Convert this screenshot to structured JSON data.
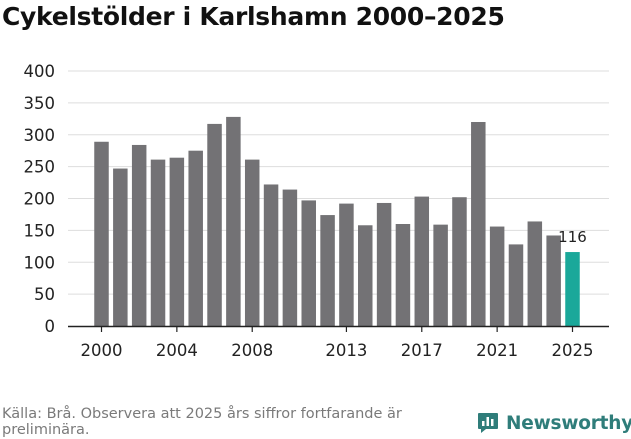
{
  "title": "Cykelstölder i Karlshamn 2000–2025",
  "source": "Källa: Brå. Observera att 2025 års siffror fortfarande är preliminära.",
  "logo": {
    "text": "Newsworthy",
    "icon": "newsworthy-chart-icon"
  },
  "colors": {
    "bar": "#737275",
    "highlight": "#1aa89a",
    "grid": "#dddddd",
    "axis": "#222222",
    "logo": "#2f7d7a"
  },
  "chart_data": {
    "type": "bar",
    "title": "Cykelstölder i Karlshamn 2000–2025",
    "categories": [
      "2000",
      "2001",
      "2002",
      "2003",
      "2004",
      "2005",
      "2006",
      "2007",
      "2008",
      "2009",
      "2010",
      "2011",
      "2012",
      "2013",
      "2014",
      "2015",
      "2016",
      "2017",
      "2018",
      "2019",
      "2020",
      "2021",
      "2022",
      "2023",
      "2024",
      "2025"
    ],
    "values": [
      289,
      247,
      284,
      261,
      264,
      275,
      317,
      328,
      261,
      222,
      214,
      197,
      174,
      192,
      158,
      193,
      160,
      203,
      159,
      202,
      320,
      156,
      128,
      164,
      142,
      116
    ],
    "highlight": "2025",
    "data_labels": [
      {
        "category": "2025",
        "text": "116"
      }
    ],
    "x_tick_labels": [
      "2000",
      "2004",
      "2008",
      "2013",
      "2017",
      "2021",
      "2025"
    ],
    "y_ticks": [
      0,
      50,
      100,
      150,
      200,
      250,
      300,
      350,
      400
    ],
    "ylim": [
      0,
      400
    ],
    "grid": true,
    "xlabel": "",
    "ylabel": ""
  }
}
